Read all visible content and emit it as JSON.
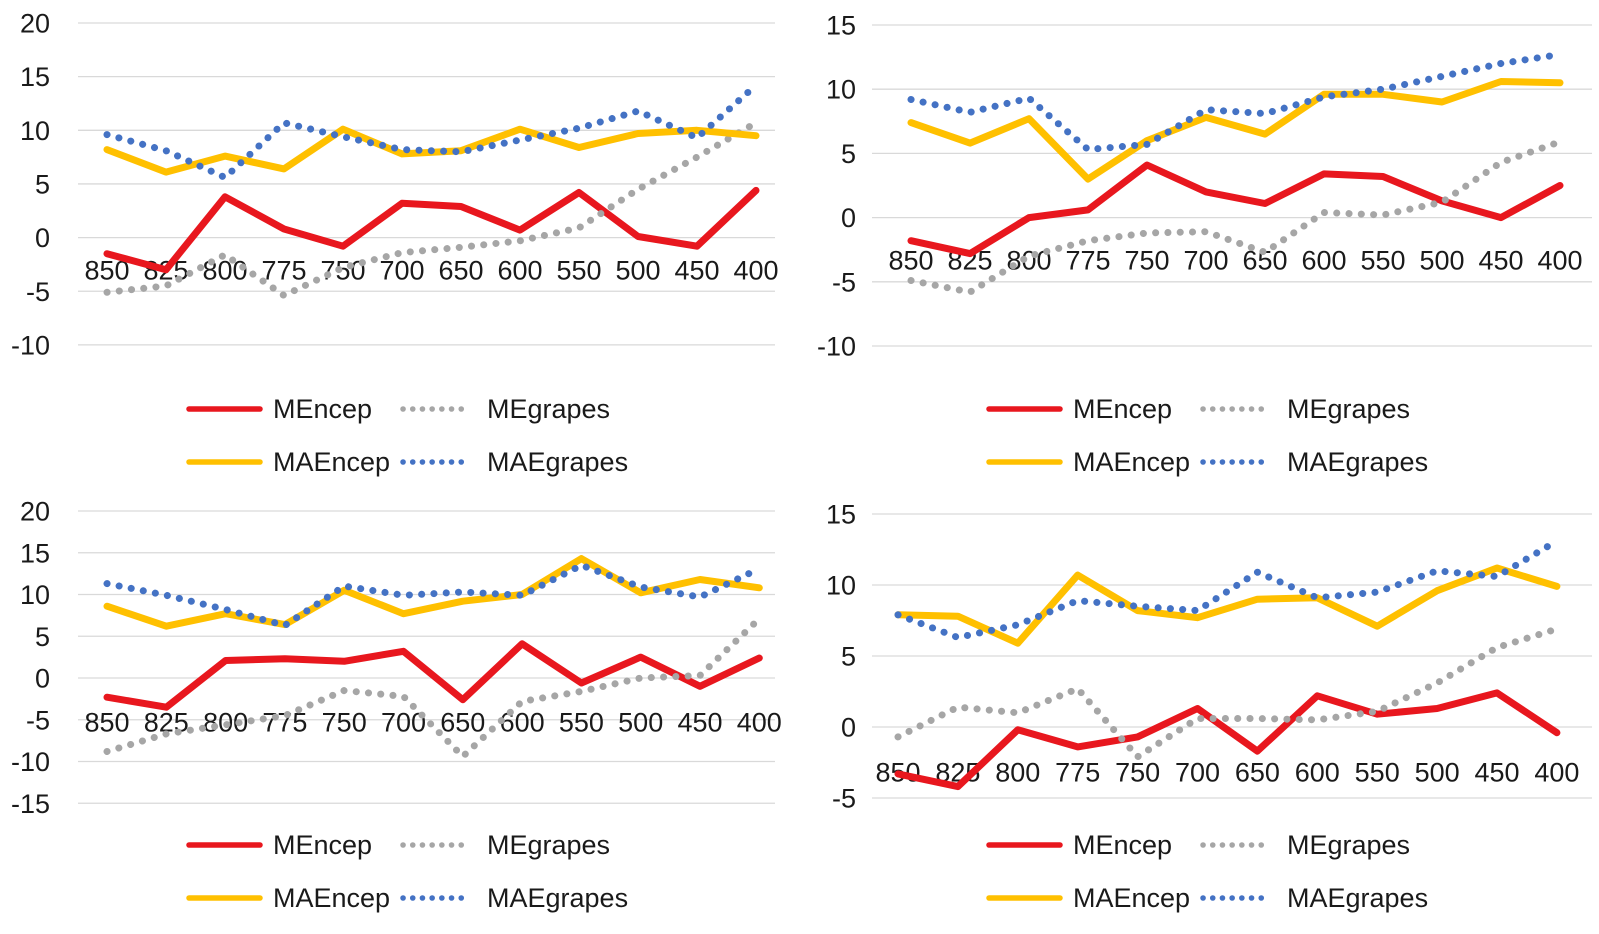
{
  "page": {
    "background": "#ffffff",
    "text_color": "#1a1a1a",
    "gridline_color": "#d9d9d9"
  },
  "colors": {
    "MEncep": "#e8171e",
    "MEgrapes": "#a6a6a6",
    "MAEncep": "#ffc000",
    "MAEgrapes": "#4472c4"
  },
  "chart_data": [
    {
      "type": "line",
      "position": "top-left",
      "title": "",
      "x_categories": [
        "850",
        "825",
        "800",
        "775",
        "750",
        "700",
        "650",
        "600",
        "550",
        "500",
        "450",
        "400"
      ],
      "y_ticks": [
        "20",
        "15",
        "10",
        "5",
        "0",
        "-5",
        "-10"
      ],
      "ylim": [
        -10,
        20
      ],
      "grid": true,
      "legend_position": "bottom",
      "series": [
        {
          "name": "MEncep",
          "style": "solid",
          "color": "#e8171e",
          "values": [
            -1.5,
            -3.0,
            3.8,
            0.8,
            -0.8,
            3.2,
            2.9,
            0.7,
            4.2,
            0.1,
            -0.8,
            4.4
          ]
        },
        {
          "name": "MEgrapes",
          "style": "dotted",
          "color": "#a6a6a6",
          "values": [
            -5.1,
            -4.5,
            -1.6,
            -5.4,
            -2.8,
            -1.4,
            -0.9,
            -0.3,
            0.9,
            4.5,
            7.5,
            10.7
          ]
        },
        {
          "name": "MAEncep",
          "style": "solid",
          "color": "#ffc000",
          "values": [
            8.2,
            6.1,
            7.6,
            6.4,
            10.1,
            7.8,
            8.1,
            10.1,
            8.4,
            9.7,
            10.0,
            9.5
          ]
        },
        {
          "name": "MAEgrapes",
          "style": "dotted",
          "color": "#4472c4",
          "values": [
            9.6,
            8.1,
            5.6,
            10.7,
            9.4,
            8.2,
            8.0,
            9.1,
            10.2,
            11.8,
            9.3,
            14.2
          ]
        }
      ]
    },
    {
      "type": "line",
      "position": "top-right",
      "title": "",
      "x_categories": [
        "850",
        "825",
        "800",
        "775",
        "750",
        "700",
        "650",
        "600",
        "550",
        "500",
        "450",
        "400"
      ],
      "y_ticks": [
        "15",
        "10",
        "5",
        "0",
        "-5",
        "-10"
      ],
      "ylim": [
        -10,
        15
      ],
      "grid": true,
      "legend_position": "bottom",
      "series": [
        {
          "name": "MEncep",
          "style": "solid",
          "color": "#e8171e",
          "values": [
            -1.8,
            -2.8,
            0.0,
            0.6,
            4.1,
            2.0,
            1.1,
            3.4,
            3.2,
            1.3,
            0.0,
            2.5
          ]
        },
        {
          "name": "MEgrapes",
          "style": "dotted",
          "color": "#a6a6a6",
          "values": [
            -4.9,
            -5.8,
            -3.0,
            -1.8,
            -1.2,
            -1.1,
            -2.7,
            0.4,
            0.2,
            1.2,
            4.3,
            5.9
          ]
        },
        {
          "name": "MAEncep",
          "style": "solid",
          "color": "#ffc000",
          "values": [
            7.4,
            5.8,
            7.7,
            3.0,
            6.0,
            7.8,
            6.5,
            9.6,
            9.6,
            9.0,
            10.6,
            10.5
          ]
        },
        {
          "name": "MAEgrapes",
          "style": "dotted",
          "color": "#4472c4",
          "values": [
            9.2,
            8.2,
            9.3,
            5.3,
            5.7,
            8.4,
            8.1,
            9.4,
            10.0,
            11.0,
            12.0,
            12.7
          ]
        }
      ]
    },
    {
      "type": "line",
      "position": "bottom-left",
      "title": "",
      "x_categories": [
        "850",
        "825",
        "800",
        "775",
        "750",
        "700",
        "650",
        "600",
        "550",
        "500",
        "450",
        "400"
      ],
      "y_ticks": [
        "20",
        "15",
        "10",
        "5",
        "0",
        "-5",
        "-10",
        "-15"
      ],
      "ylim": [
        -15,
        20
      ],
      "grid": true,
      "legend_position": "bottom",
      "series": [
        {
          "name": "MEncep",
          "style": "solid",
          "color": "#e8171e",
          "values": [
            -2.3,
            -3.5,
            2.1,
            2.3,
            2.0,
            3.2,
            -2.6,
            4.1,
            -0.6,
            2.5,
            -1.0,
            2.4
          ]
        },
        {
          "name": "MEgrapes",
          "style": "dotted",
          "color": "#a6a6a6",
          "values": [
            -8.8,
            -6.7,
            -5.6,
            -4.5,
            -1.5,
            -2.2,
            -9.4,
            -2.8,
            -1.6,
            0.0,
            0.3,
            7.1
          ]
        },
        {
          "name": "MAEncep",
          "style": "solid",
          "color": "#ffc000",
          "values": [
            8.6,
            6.2,
            7.7,
            6.4,
            10.5,
            7.7,
            9.2,
            10.0,
            14.3,
            10.2,
            11.8,
            10.8
          ]
        },
        {
          "name": "MAEgrapes",
          "style": "dotted",
          "color": "#4472c4",
          "values": [
            11.3,
            9.9,
            8.2,
            6.3,
            11.0,
            9.9,
            10.3,
            9.9,
            13.5,
            10.9,
            9.7,
            13.1
          ]
        }
      ]
    },
    {
      "type": "line",
      "position": "bottom-right",
      "title": "",
      "x_categories": [
        "850",
        "825",
        "800",
        "775",
        "750",
        "700",
        "650",
        "600",
        "550",
        "500",
        "450",
        "400"
      ],
      "y_ticks": [
        "15",
        "10",
        "5",
        "0",
        "-5"
      ],
      "ylim": [
        -5,
        15
      ],
      "grid": true,
      "legend_position": "bottom",
      "series": [
        {
          "name": "MEncep",
          "style": "solid",
          "color": "#e8171e",
          "values": [
            -3.3,
            -4.2,
            -0.2,
            -1.4,
            -0.7,
            1.3,
            -1.7,
            2.2,
            0.9,
            1.3,
            2.4,
            -0.4
          ]
        },
        {
          "name": "MEgrapes",
          "style": "dotted",
          "color": "#a6a6a6",
          "values": [
            -0.7,
            1.4,
            1.0,
            2.7,
            -2.1,
            0.6,
            0.6,
            0.5,
            1.1,
            3.1,
            5.6,
            6.9
          ]
        },
        {
          "name": "MAEncep",
          "style": "solid",
          "color": "#ffc000",
          "values": [
            7.9,
            7.8,
            5.9,
            10.7,
            8.2,
            7.7,
            9.0,
            9.1,
            7.1,
            9.6,
            11.2,
            9.9
          ]
        },
        {
          "name": "MAEgrapes",
          "style": "dotted",
          "color": "#4472c4",
          "values": [
            7.9,
            6.3,
            7.2,
            8.9,
            8.5,
            8.2,
            10.9,
            9.1,
            9.5,
            11.0,
            10.6,
            13.1
          ]
        }
      ]
    }
  ]
}
